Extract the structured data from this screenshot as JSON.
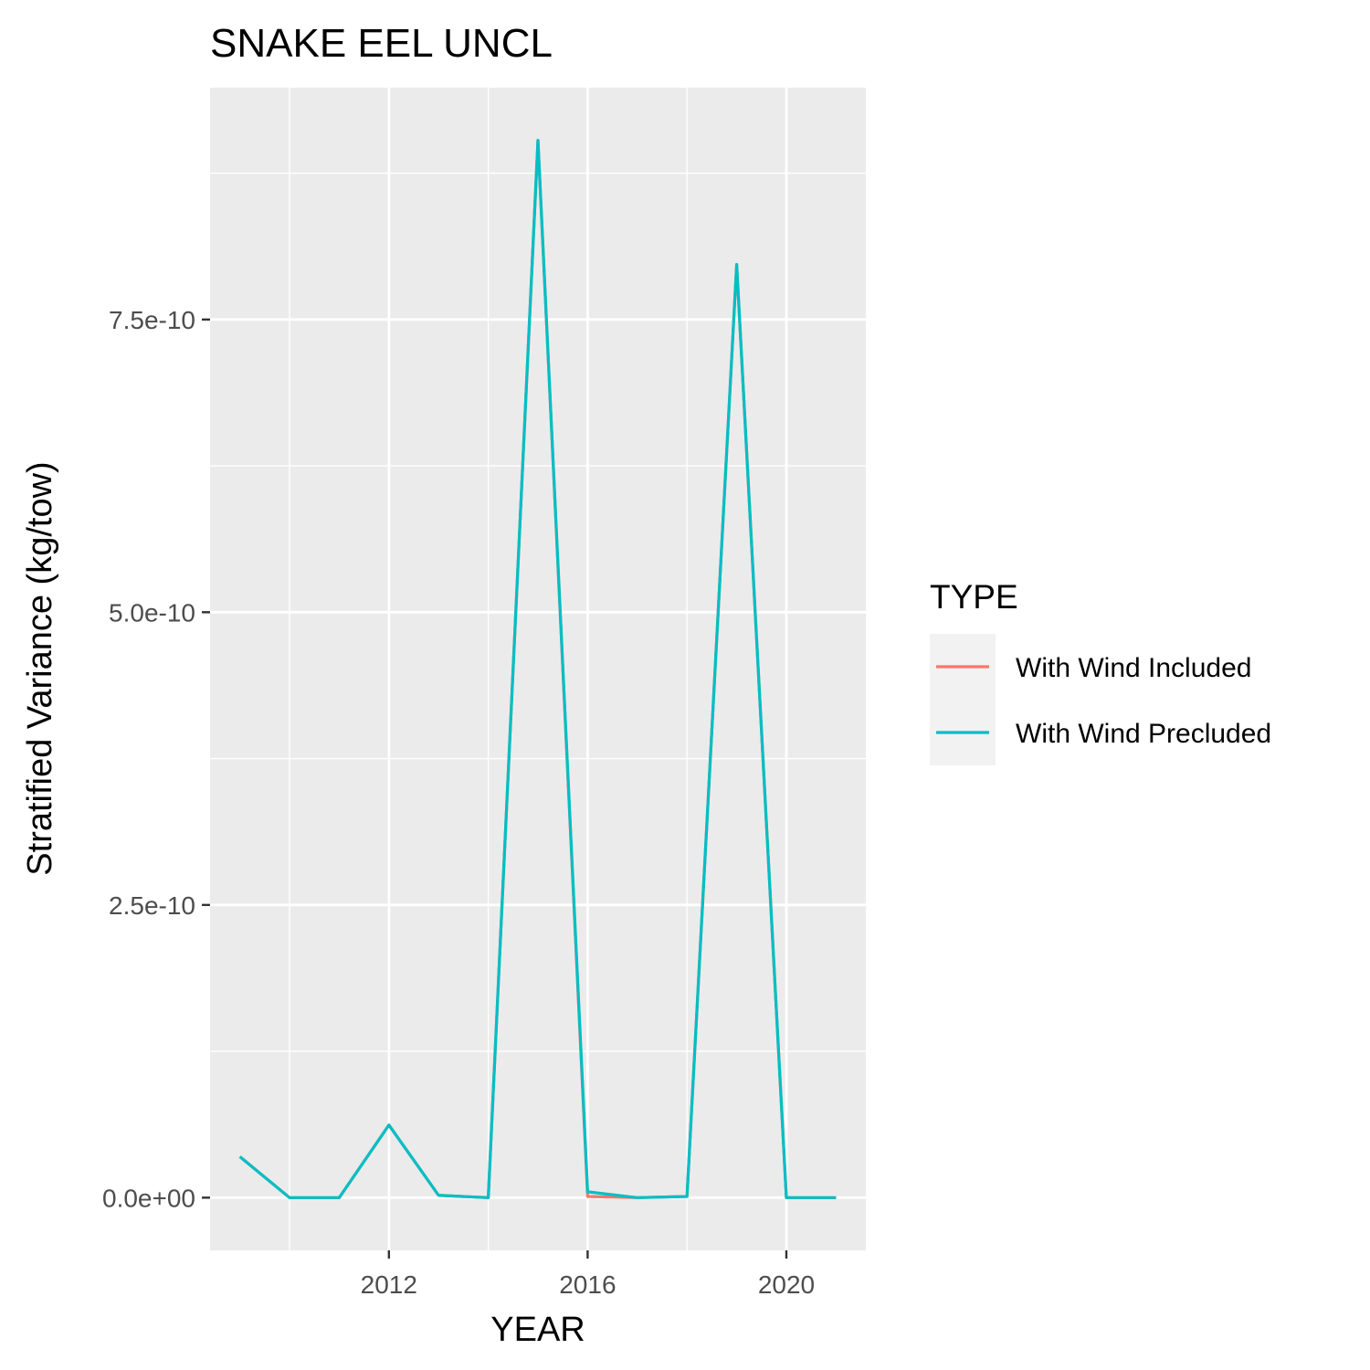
{
  "chart_data": {
    "type": "line",
    "title": "SNAKE EEL UNCL",
    "xlabel": "YEAR",
    "ylabel": "Stratified Variance (kg/tow)",
    "x": [
      2009,
      2010,
      2011,
      2012,
      2013,
      2014,
      2015,
      2016,
      2017,
      2018,
      2019,
      2020,
      2021
    ],
    "series": [
      {
        "name": "With Wind Included",
        "color": "#F8766D",
        "values": [
          3.5e-11,
          0,
          0,
          6.2e-11,
          2e-12,
          0,
          9.03e-10,
          1e-12,
          0,
          1e-12,
          7.97e-10,
          0,
          0
        ]
      },
      {
        "name": "With Wind Precluded",
        "color": "#00BFC4",
        "values": [
          3.5e-11,
          0,
          0,
          6.2e-11,
          2e-12,
          0,
          9.03e-10,
          5e-12,
          0,
          1e-12,
          7.97e-10,
          0,
          0
        ]
      }
    ],
    "xlim": [
      2008.4,
      2021.6
    ],
    "ylim": [
      -4.5e-11,
      9.48e-10
    ],
    "x_ticks": [
      2012,
      2016,
      2020
    ],
    "x_tick_labels": [
      "2012",
      "2016",
      "2020"
    ],
    "x_minor_ticks": [
      2010,
      2014,
      2018
    ],
    "y_ticks": [
      0,
      2.5e-10,
      5e-10,
      7.5e-10
    ],
    "y_tick_labels": [
      "0.0e+00",
      "2.5e-10",
      "5.0e-10",
      "7.5e-10"
    ],
    "y_minor_ticks": [
      1.25e-10,
      3.75e-10,
      6.25e-10,
      8.75e-10
    ],
    "grid": true,
    "legend": {
      "title": "TYPE",
      "position": "right"
    },
    "panel_color": "#EBEBEB",
    "grid_color": "#FFFFFF",
    "legend_key_color": "#F2F2F2"
  }
}
